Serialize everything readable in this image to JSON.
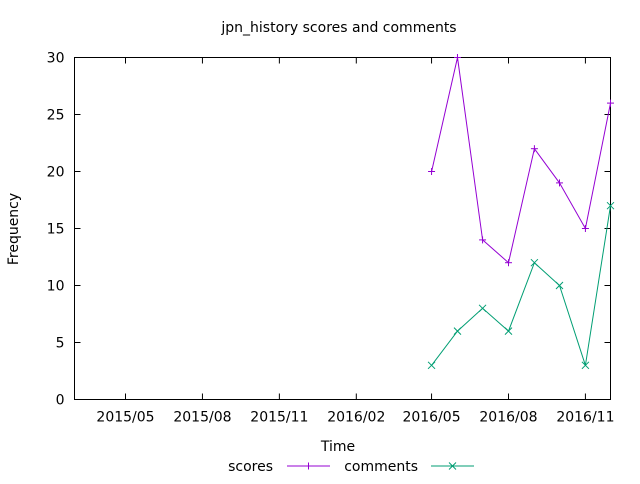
{
  "chart_data": {
    "type": "line",
    "title": "jpn_history scores and comments",
    "xlabel": "Time",
    "ylabel": "Frequency",
    "x_tick_labels": [
      "2015/05",
      "2015/08",
      "2015/11",
      "2016/02",
      "2016/05",
      "2016/08",
      "2016/11"
    ],
    "x_ticks": [
      "2015-05-01",
      "2015-08-01",
      "2015-11-01",
      "2016-02-01",
      "2016-05-01",
      "2016-08-01",
      "2016-11-01"
    ],
    "xlim": [
      "2015-03-01",
      "2016-12-01"
    ],
    "ylim": [
      0,
      30
    ],
    "y_ticks": [
      0,
      5,
      10,
      15,
      20,
      25,
      30
    ],
    "x": [
      "2016-05-01",
      "2016-06-01",
      "2016-07-01",
      "2016-08-01",
      "2016-09-01",
      "2016-10-01",
      "2016-11-01",
      "2016-12-01"
    ],
    "series": [
      {
        "name": "scores",
        "values": [
          20,
          30,
          14,
          12,
          22,
          19,
          15,
          26
        ],
        "color": "#9400d3",
        "marker": "plus"
      },
      {
        "name": "comments",
        "values": [
          3,
          6,
          8,
          6,
          12,
          10,
          3,
          17
        ],
        "color": "#009e73",
        "marker": "cross"
      }
    ],
    "legend_position": "bottom-center",
    "grid": false
  }
}
